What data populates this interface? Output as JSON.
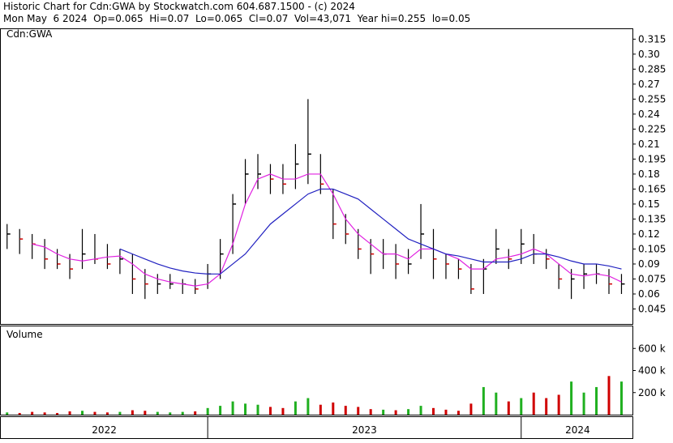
{
  "chart_data": {
    "type": "stock",
    "title": "Historic Chart for Cdn:GWA by Stockwatch.com 604.687.1500 - (c) 2024",
    "subtitle": "Mon May  6 2024  Op=0.065  Hi=0.07  Lo=0.065  Cl=0.07  Vol=43,071  Year hi=0.255  lo=0.05",
    "symbol_label": "Cdn:GWA",
    "volume_label": "Volume",
    "xlim": [
      2022.34,
      2024.355
    ],
    "x_labels": [
      {
        "value": 2022.67,
        "label": "2022"
      },
      {
        "value": 2023.5,
        "label": "2023"
      },
      {
        "value": 2024.18,
        "label": "2024"
      }
    ],
    "x_dividers": [
      2023,
      2024
    ],
    "ylim": [
      0.03,
      0.325
    ],
    "yticks": [
      0.045,
      0.06,
      0.075,
      0.09,
      0.105,
      0.12,
      0.135,
      0.15,
      0.165,
      0.18,
      0.195,
      0.21,
      0.225,
      0.24,
      0.255,
      0.27,
      0.285,
      {
        "value": 0.3,
        "label": "0.30"
      },
      0.315
    ],
    "vol_ylim": [
      0,
      800000
    ],
    "vol_yticks": [
      {
        "value": 200000,
        "label": "200 k"
      },
      {
        "value": 400000,
        "label": "400 k"
      },
      {
        "value": 600000,
        "label": "600 k"
      }
    ],
    "x": [
      2022.36,
      2022.4,
      2022.44,
      2022.48,
      2022.52,
      2022.56,
      2022.6,
      2022.64,
      2022.68,
      2022.72,
      2022.76,
      2022.8,
      2022.84,
      2022.88,
      2022.92,
      2022.96,
      2023.0,
      2023.04,
      2023.08,
      2023.12,
      2023.16,
      2023.2,
      2023.24,
      2023.28,
      2023.32,
      2023.36,
      2023.4,
      2023.44,
      2023.48,
      2023.52,
      2023.56,
      2023.6,
      2023.64,
      2023.68,
      2023.72,
      2023.76,
      2023.8,
      2023.84,
      2023.88,
      2023.92,
      2023.96,
      2024.0,
      2024.04,
      2024.08,
      2024.12,
      2024.16,
      2024.2,
      2024.24,
      2024.28,
      2024.32
    ],
    "high": [
      0.13,
      0.125,
      0.12,
      0.115,
      0.105,
      0.1,
      0.125,
      0.12,
      0.11,
      0.105,
      0.1,
      0.085,
      0.08,
      0.08,
      0.075,
      0.075,
      0.09,
      0.115,
      0.16,
      0.195,
      0.2,
      0.19,
      0.19,
      0.21,
      0.255,
      0.2,
      0.165,
      0.14,
      0.125,
      0.115,
      0.115,
      0.11,
      0.105,
      0.15,
      0.125,
      0.1,
      0.095,
      0.09,
      0.095,
      0.125,
      0.105,
      0.125,
      0.12,
      0.105,
      0.09,
      0.085,
      0.09,
      0.09,
      0.085,
      0.08
    ],
    "low": [
      0.105,
      0.1,
      0.095,
      0.085,
      0.085,
      0.075,
      0.085,
      0.09,
      0.085,
      0.08,
      0.06,
      0.055,
      0.06,
      0.065,
      0.06,
      0.06,
      0.065,
      0.075,
      0.1,
      0.15,
      0.165,
      0.16,
      0.16,
      0.165,
      0.17,
      0.16,
      0.115,
      0.11,
      0.095,
      0.08,
      0.085,
      0.075,
      0.08,
      0.095,
      0.075,
      0.075,
      0.075,
      0.06,
      0.06,
      0.09,
      0.085,
      0.09,
      0.09,
      0.085,
      0.065,
      0.055,
      0.065,
      0.07,
      0.06,
      0.06
    ],
    "close": [
      0.12,
      0.115,
      0.11,
      0.095,
      0.09,
      0.085,
      0.1,
      0.095,
      0.09,
      0.095,
      0.075,
      0.07,
      0.07,
      0.07,
      0.07,
      0.065,
      0.08,
      0.1,
      0.15,
      0.18,
      0.18,
      0.175,
      0.17,
      0.19,
      0.2,
      0.17,
      0.13,
      0.12,
      0.105,
      0.1,
      0.1,
      0.09,
      0.09,
      0.12,
      0.095,
      0.09,
      0.085,
      0.065,
      0.085,
      0.105,
      0.095,
      0.11,
      0.1,
      0.095,
      0.075,
      0.075,
      0.08,
      0.08,
      0.07,
      0.07
    ],
    "volume": [
      20000,
      15000,
      25000,
      20000,
      15000,
      30000,
      35000,
      25000,
      20000,
      25000,
      40000,
      35000,
      25000,
      20000,
      25000,
      30000,
      60000,
      80000,
      120000,
      100000,
      90000,
      70000,
      60000,
      120000,
      150000,
      90000,
      110000,
      80000,
      70000,
      50000,
      45000,
      40000,
      50000,
      80000,
      60000,
      45000,
      35000,
      100000,
      250000,
      200000,
      120000,
      150000,
      200000,
      150000,
      180000,
      300000,
      200000,
      250000,
      350000,
      300000
    ],
    "ma_short": {
      "color": "#e020e0",
      "values": [
        null,
        null,
        0.11,
        0.107,
        0.1,
        0.095,
        0.093,
        0.095,
        0.097,
        0.098,
        0.09,
        0.08,
        0.075,
        0.072,
        0.07,
        0.068,
        0.07,
        0.08,
        0.11,
        0.15,
        0.175,
        0.18,
        0.175,
        0.175,
        0.18,
        0.18,
        0.16,
        0.135,
        0.12,
        0.11,
        0.1,
        0.1,
        0.095,
        0.105,
        0.105,
        0.1,
        0.095,
        0.085,
        0.085,
        0.095,
        0.097,
        0.1,
        0.105,
        0.1,
        0.09,
        0.08,
        0.078,
        0.08,
        0.078,
        0.072
      ]
    },
    "ma_long": {
      "color": "#2020c0",
      "values": [
        null,
        null,
        null,
        null,
        null,
        null,
        null,
        null,
        null,
        0.105,
        0.1,
        0.095,
        0.09,
        0.086,
        0.083,
        0.081,
        0.08,
        0.08,
        0.09,
        0.1,
        0.115,
        0.13,
        0.14,
        0.15,
        0.16,
        0.165,
        0.165,
        0.16,
        0.155,
        0.145,
        0.135,
        0.125,
        0.115,
        0.11,
        0.105,
        0.1,
        0.098,
        0.095,
        0.092,
        0.092,
        0.092,
        0.095,
        0.1,
        0.1,
        0.097,
        0.093,
        0.09,
        0.09,
        0.088,
        0.085
      ]
    }
  }
}
